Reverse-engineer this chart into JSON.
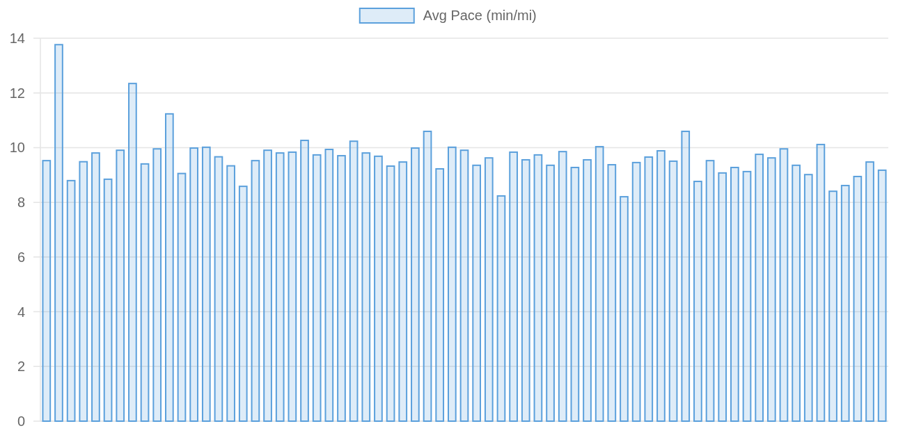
{
  "chart_data": {
    "type": "bar",
    "categories": [
      null,
      null,
      null,
      null,
      null,
      null,
      null,
      null,
      null,
      null,
      null,
      null,
      null,
      null,
      null,
      null,
      null,
      null,
      null,
      null,
      null,
      null,
      null,
      null,
      null,
      null,
      null,
      null,
      null,
      null,
      null,
      null,
      null,
      null,
      null,
      null,
      null,
      null,
      null,
      null,
      null,
      null,
      null,
      null,
      null,
      null,
      null,
      null,
      null,
      null,
      null,
      null,
      null,
      null,
      null,
      null,
      null,
      null,
      null,
      null,
      null,
      null,
      null,
      null,
      null,
      null,
      null,
      null,
      null
    ],
    "series": [
      {
        "name": "Avg Pace (min/mi)",
        "color": "#5ba0dc",
        "values": [
          9.55,
          13.79,
          8.82,
          9.51,
          9.83,
          8.87,
          9.93,
          12.37,
          9.43,
          9.98,
          11.26,
          9.08,
          10.01,
          10.04,
          9.69,
          9.36,
          8.61,
          9.55,
          9.93,
          9.83,
          9.86,
          10.29,
          9.76,
          9.96,
          9.73,
          10.26,
          9.83,
          9.71,
          9.35,
          9.5,
          10.01,
          10.62,
          9.25,
          10.04,
          9.93,
          9.38,
          9.65,
          8.26,
          9.86,
          9.58,
          9.76,
          9.38,
          9.88,
          9.3,
          9.58,
          10.06,
          9.4,
          8.23,
          9.48,
          9.68,
          9.91,
          9.53,
          10.62,
          8.79,
          9.55,
          9.1,
          9.3,
          9.15,
          9.78,
          9.65,
          9.98,
          9.38,
          9.04,
          10.14,
          8.43,
          8.64,
          8.97,
          9.5,
          9.2
        ]
      }
    ],
    "ylim": [
      0,
      14
    ],
    "yticks": [
      0,
      2,
      4,
      6,
      8,
      10,
      12,
      14
    ],
    "grid": "y",
    "legend": "top",
    "tick_labels": "y"
  }
}
